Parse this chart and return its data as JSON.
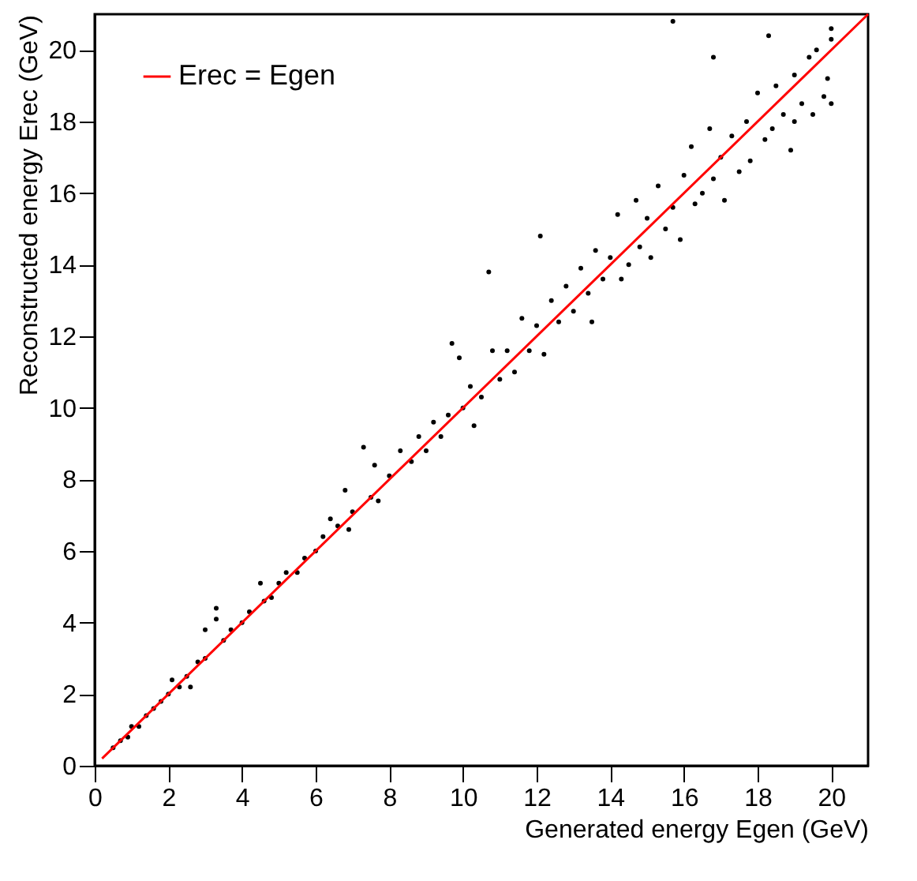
{
  "chart_data": {
    "type": "scatter",
    "xlabel": "Generated energy Egen (GeV)",
    "ylabel": "Reconstructed energy Erec (GeV)",
    "xlim": [
      0,
      21
    ],
    "ylim": [
      0,
      21
    ],
    "xticks": [
      0,
      2,
      4,
      6,
      8,
      10,
      12,
      14,
      16,
      18,
      20
    ],
    "yticks": [
      0,
      2,
      4,
      6,
      8,
      10,
      12,
      14,
      16,
      18,
      20
    ],
    "grid": false,
    "legend": "top left",
    "marker": "circle",
    "series": [
      {
        "color": "#000000",
        "x": [
          0.5,
          0.7,
          0.9,
          1.0,
          1.2,
          1.4,
          1.6,
          1.8,
          2.0,
          2.1,
          2.3,
          2.5,
          2.6,
          2.8,
          3.0,
          3.0,
          3.3,
          3.3,
          3.5,
          3.7,
          4.0,
          4.2,
          4.5,
          4.6,
          4.8,
          5.0,
          5.2,
          5.5,
          5.7,
          6.0,
          6.2,
          6.4,
          6.6,
          6.8,
          6.9,
          7.0,
          7.3,
          7.5,
          7.6,
          7.7,
          8.0,
          8.3,
          8.6,
          8.8,
          9.0,
          9.2,
          9.4,
          9.6,
          9.7,
          9.9,
          10.0,
          10.2,
          10.3,
          10.5,
          10.7,
          10.8,
          11.0,
          11.2,
          11.4,
          11.6,
          11.8,
          12.0,
          12.2,
          12.1,
          12.4,
          12.6,
          12.8,
          13.0,
          13.2,
          13.4,
          13.6,
          13.5,
          13.8,
          14.0,
          14.2,
          14.3,
          14.5,
          14.7,
          14.8,
          15.0,
          15.1,
          15.3,
          15.5,
          15.7,
          15.9,
          16.0,
          16.2,
          16.3,
          16.5,
          16.7,
          16.8,
          17.0,
          17.1,
          17.3,
          17.5,
          17.7,
          17.8,
          18.0,
          18.2,
          18.4,
          18.5,
          18.7,
          18.9,
          19.0,
          19.2,
          19.4,
          19.5,
          19.6,
          19.8,
          19.9,
          20.0,
          20.0,
          18.3,
          15.7,
          16.8,
          19.0,
          20.0
        ],
        "values": [
          0.5,
          0.7,
          0.8,
          1.1,
          1.1,
          1.4,
          1.6,
          1.8,
          2.0,
          2.4,
          2.2,
          2.5,
          2.2,
          2.9,
          3.0,
          3.8,
          4.4,
          4.1,
          3.5,
          3.8,
          4.0,
          4.3,
          5.1,
          4.6,
          4.7,
          5.1,
          5.4,
          5.4,
          5.8,
          6.0,
          6.4,
          6.9,
          6.7,
          7.7,
          6.6,
          7.1,
          8.9,
          7.5,
          8.4,
          7.4,
          8.1,
          8.8,
          8.5,
          9.2,
          8.8,
          9.6,
          9.2,
          9.8,
          11.8,
          11.4,
          10.0,
          10.6,
          9.5,
          10.3,
          13.8,
          11.6,
          10.8,
          11.6,
          11.0,
          12.5,
          11.6,
          12.3,
          11.5,
          14.8,
          13.0,
          12.4,
          13.4,
          12.7,
          13.9,
          13.2,
          14.4,
          12.4,
          13.6,
          14.2,
          15.4,
          13.6,
          14.0,
          15.8,
          14.5,
          15.3,
          14.2,
          16.2,
          15.0,
          15.6,
          14.7,
          16.5,
          17.3,
          15.7,
          16.0,
          17.8,
          16.4,
          17.0,
          15.8,
          17.6,
          16.6,
          18.0,
          16.9,
          18.8,
          17.5,
          17.8,
          19.0,
          18.2,
          17.2,
          19.3,
          18.5,
          19.8,
          18.2,
          20.0,
          18.7,
          19.2,
          20.6,
          18.5,
          20.4,
          20.8,
          19.8,
          18.0,
          20.3
        ]
      },
      {
        "type": "line",
        "name": "Erec = Egen",
        "color": "#ff0000",
        "x": [
          0.2,
          21
        ],
        "values": [
          0.2,
          21
        ],
        "marker": "none",
        "line_style": "solid"
      }
    ]
  }
}
